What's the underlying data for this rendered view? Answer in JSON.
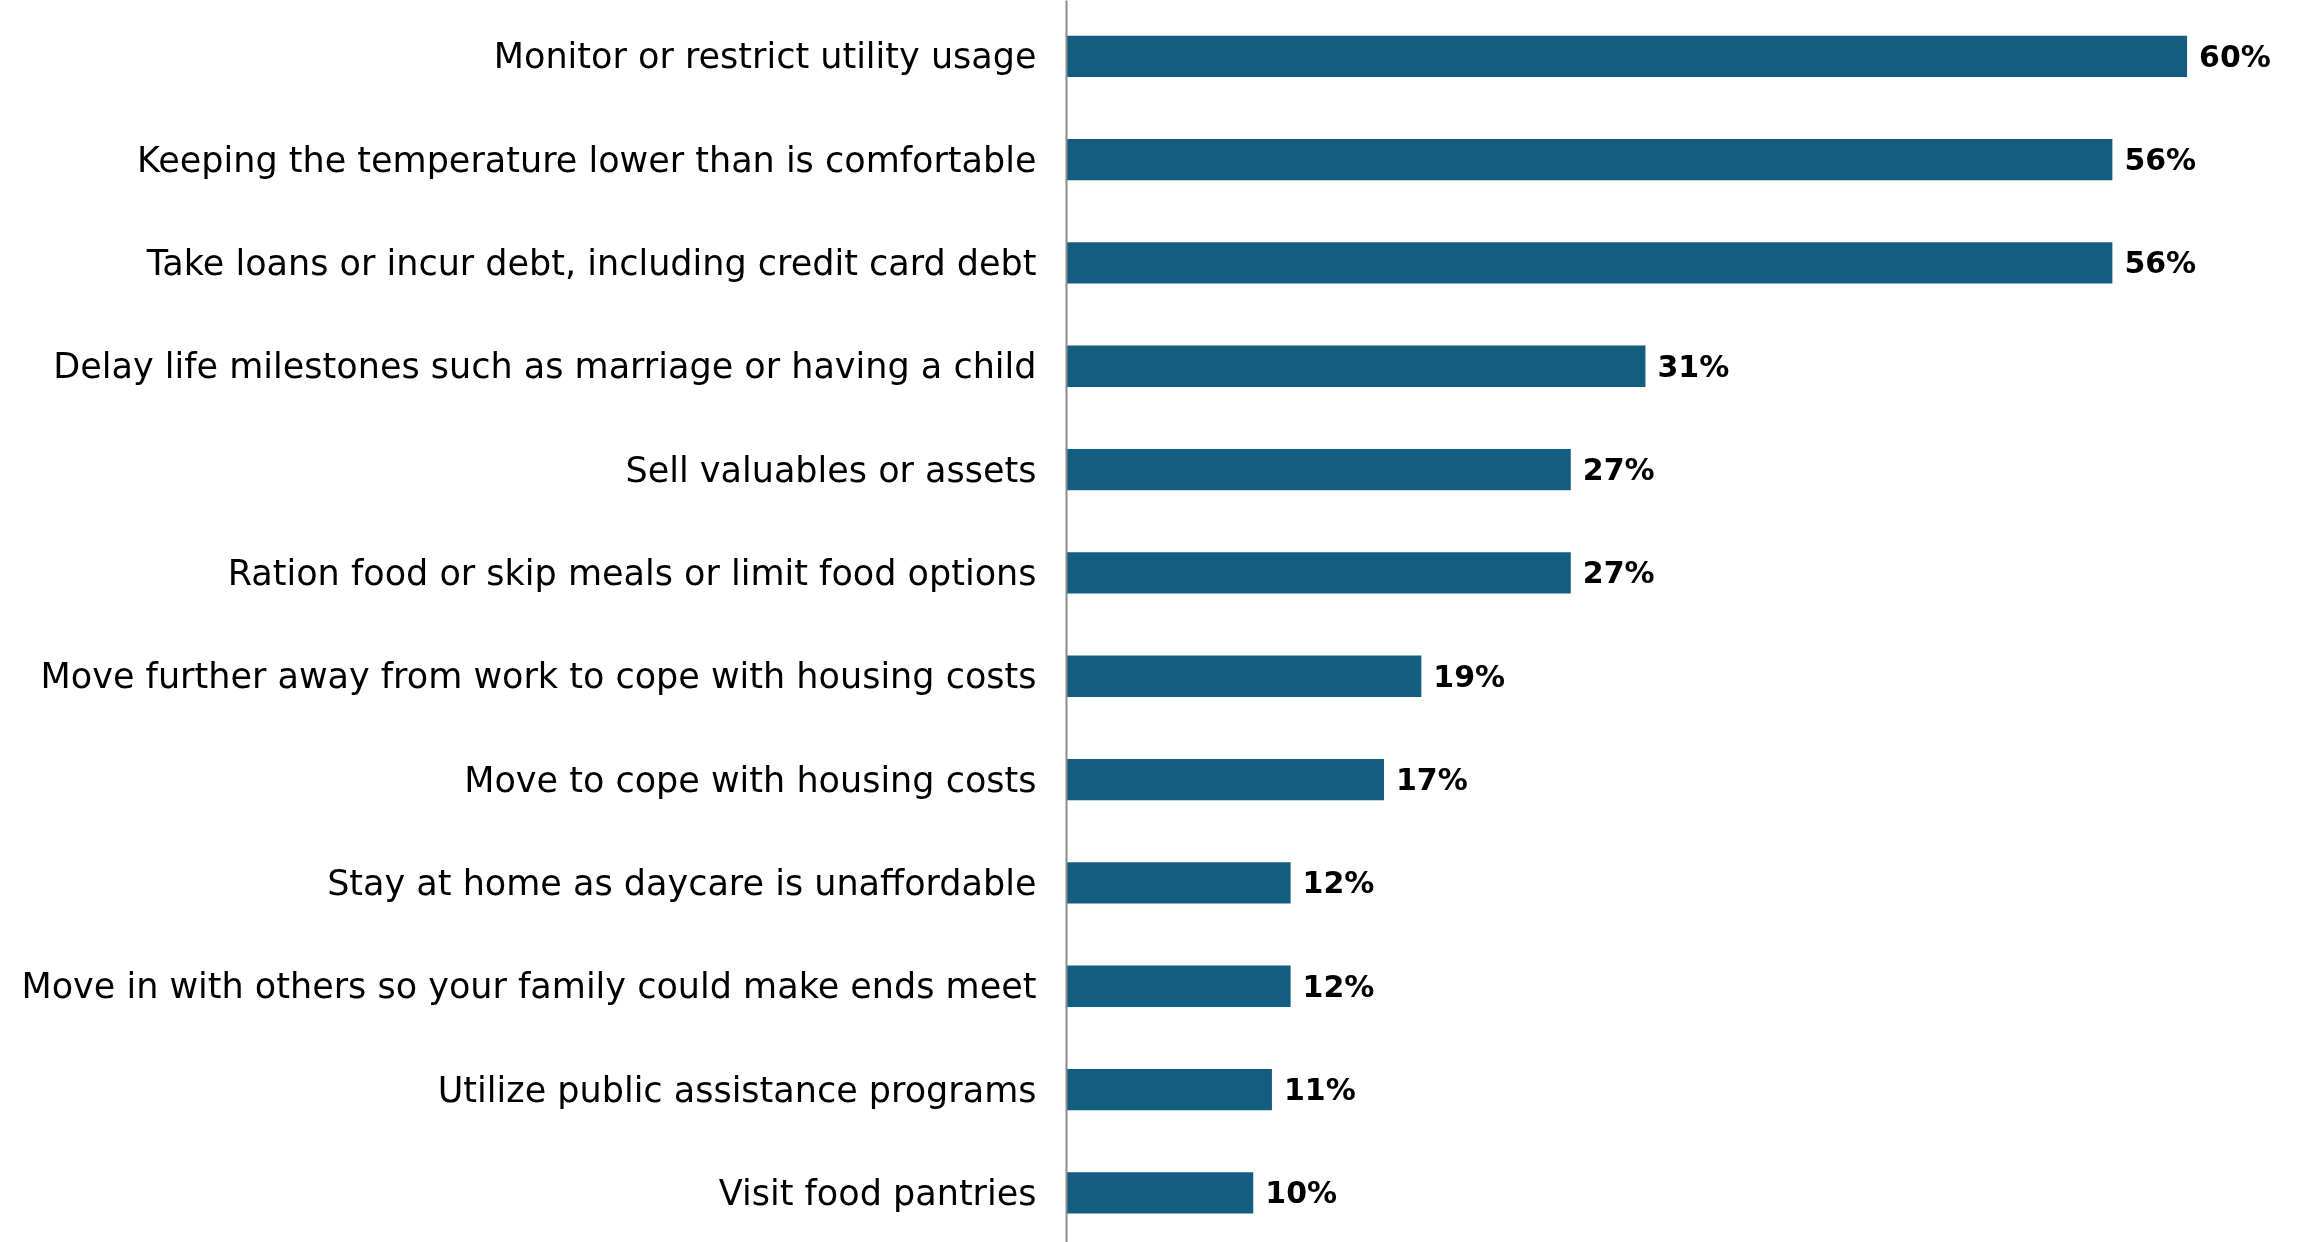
{
  "chart_data": {
    "type": "bar",
    "orientation": "horizontal",
    "categories": [
      "Monitor or restrict utility usage",
      "Keeping the temperature lower than is comfortable",
      "Take loans or incur debt, including credit card debt",
      "Delay life milestones such as marriage or having a child",
      "Sell valuables or assets",
      "Ration food or skip meals or limit food options",
      "Move further away from work to cope with housing costs",
      "Move to cope with housing costs",
      "Stay at home as daycare is unaffordable",
      "Move in with others so your family could make ends meet",
      "Utilize public assistance programs",
      "Visit food pantries"
    ],
    "values": [
      60,
      56,
      56,
      31,
      27,
      27,
      19,
      17,
      12,
      12,
      11,
      10
    ],
    "value_labels": [
      "60%",
      "56%",
      "56%",
      "31%",
      "27%",
      "27%",
      "19%",
      "17%",
      "12%",
      "12%",
      "11%",
      "10%"
    ],
    "color": "#125d80",
    "grid": false
  }
}
